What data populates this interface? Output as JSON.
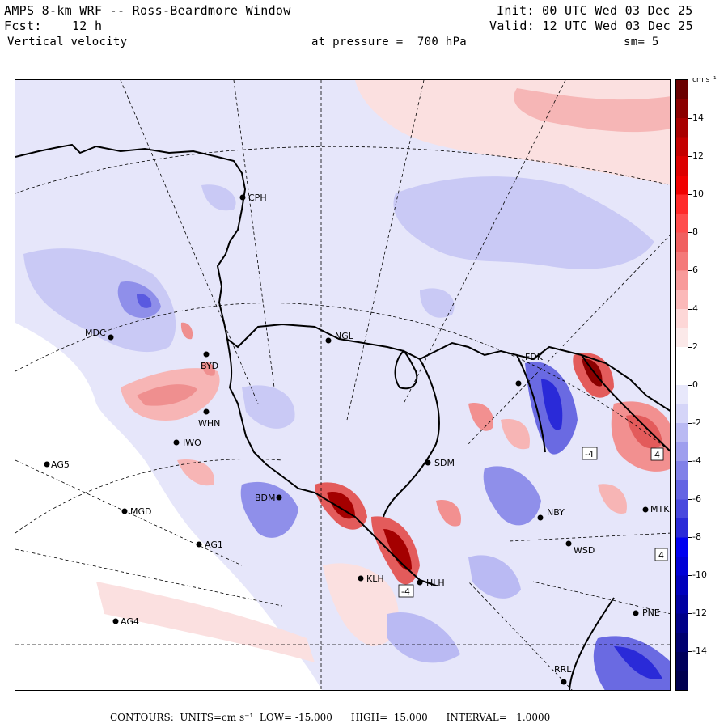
{
  "header": {
    "line1_left": "AMPS 8-km WRF -- Ross-Beardmore Window",
    "line1_right": "Init: 00 UTC Wed 03 Dec 25",
    "line2_left": "Fcst:    12 h",
    "line2_right": "Valid: 12 UTC Wed 03 Dec 25",
    "line3_left": "Vertical velocity",
    "line3_mid": "at pressure =  700 hPa",
    "line3_right": "sm= 5"
  },
  "colorbar": {
    "units": "cm s⁻¹",
    "labels": [
      "14",
      "12",
      "10",
      "8",
      "6",
      "4",
      "2",
      "0",
      "-2",
      "-4",
      "-6",
      "-8",
      "-10",
      "-12",
      "-14"
    ],
    "colors_top_to_bottom": [
      "#6b0000",
      "#8b0000",
      "#a80000",
      "#c40000",
      "#dc0000",
      "#f00000",
      "#ff2a2a",
      "#ff4d4d",
      "#f06060",
      "#f47a7a",
      "#f89a9a",
      "#fbb9b9",
      "#fdd7d7",
      "#fbe9e9",
      "#ffffff",
      "#ffffff",
      "#e8e8fb",
      "#d5d5f8",
      "#babaf3",
      "#9e9eee",
      "#8181e8",
      "#6464e3",
      "#4848de",
      "#2a2ad8",
      "#0000f0",
      "#0000d6",
      "#0000bc",
      "#0000a2",
      "#000088",
      "#000070",
      "#00005c",
      "#000050"
    ]
  },
  "stations": [
    {
      "code": "CPH"
    },
    {
      "code": "MDC"
    },
    {
      "code": "NGL"
    },
    {
      "code": "BYD"
    },
    {
      "code": "FDK"
    },
    {
      "code": "WHN"
    },
    {
      "code": "IWO"
    },
    {
      "code": "AG5"
    },
    {
      "code": "SDM"
    },
    {
      "code": "BDM"
    },
    {
      "code": "MGD"
    },
    {
      "code": "NBY"
    },
    {
      "code": "MTK"
    },
    {
      "code": "AG1"
    },
    {
      "code": "WSD"
    },
    {
      "code": "KLH"
    },
    {
      "code": "HLH"
    },
    {
      "code": "AG4"
    },
    {
      "code": "PNE"
    },
    {
      "code": "RRL"
    }
  ],
  "map_markers": [
    {
      "label": "-4"
    },
    {
      "label": "4"
    },
    {
      "label": "4"
    },
    {
      "label": "-4"
    }
  ],
  "footer": "CONTOURS:  UNITS=cm s⁻¹  LOW= -15.000      HIGH=  15.000      INTERVAL=   1.0000"
}
